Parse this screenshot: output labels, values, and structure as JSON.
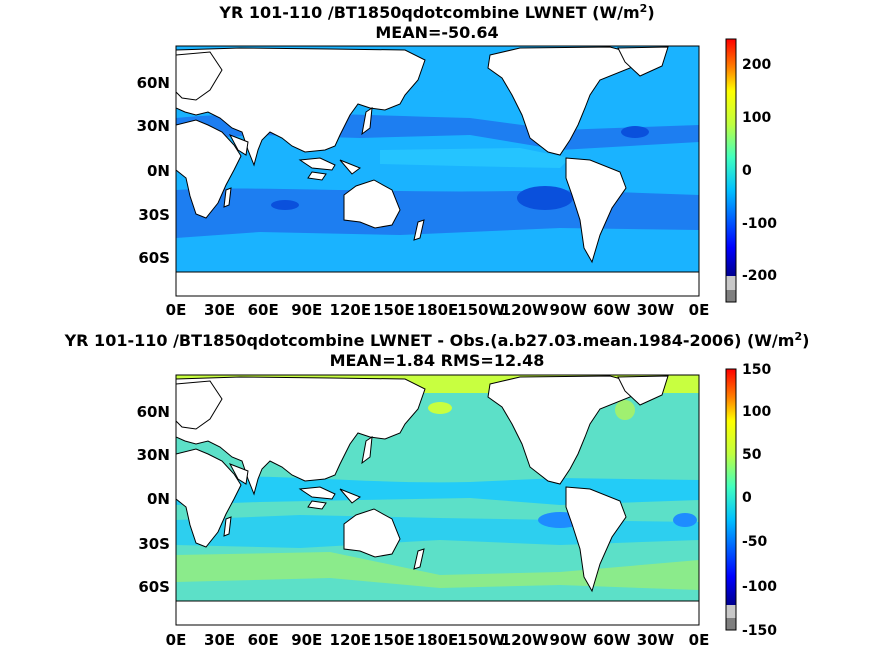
{
  "panels": [
    {
      "title_line1": "YR 101-110 /BT1850qdotcombine  LWNET (W/m",
      "title_sup": "2",
      "title_end": ")",
      "title_line2": "MEAN=-50.64",
      "colorbar_ticks": [
        "200",
        "100",
        "0",
        "-100",
        "-200"
      ],
      "colorbar_range": [
        -250,
        250
      ]
    },
    {
      "title_line1": "YR 101-110 /BT1850qdotcombine LWNET - Obs.(a.b27.03.mean.1984-2006) (W/m",
      "title_sup": "2",
      "title_end": ")",
      "title_line2": "MEAN=1.84 RMS=12.48",
      "colorbar_ticks": [
        "150",
        "100",
        "50",
        "0",
        "-50",
        "-100",
        "-150"
      ],
      "colorbar_range": [
        -150,
        150
      ]
    }
  ],
  "axes": {
    "lat_ticks": [
      "60N",
      "30N",
      "0N",
      "30S",
      "60S"
    ],
    "lon_ticks": [
      "0E",
      "30E",
      "60E",
      "90E",
      "120E",
      "150E",
      "180E",
      "150W",
      "120W",
      "90W",
      "60W",
      "30W",
      "0E"
    ]
  },
  "colors": {
    "land": "#ffffff",
    "panel1_ocean": "#1ab3ff",
    "panel1_deep": "#1e78f0",
    "panel2_ocean": "#5ce0c8",
    "panel2_cyan": "#19c8ff",
    "panel2_yellow": "#c8ff40",
    "colormap": [
      "#7f7f7f",
      "#c8c8c8",
      "#00008f",
      "#0000ff",
      "#0060ff",
      "#00bfff",
      "#40ffbf",
      "#9fff60",
      "#ffff00",
      "#ff8000",
      "#ff0000",
      "#9f0000"
    ]
  }
}
